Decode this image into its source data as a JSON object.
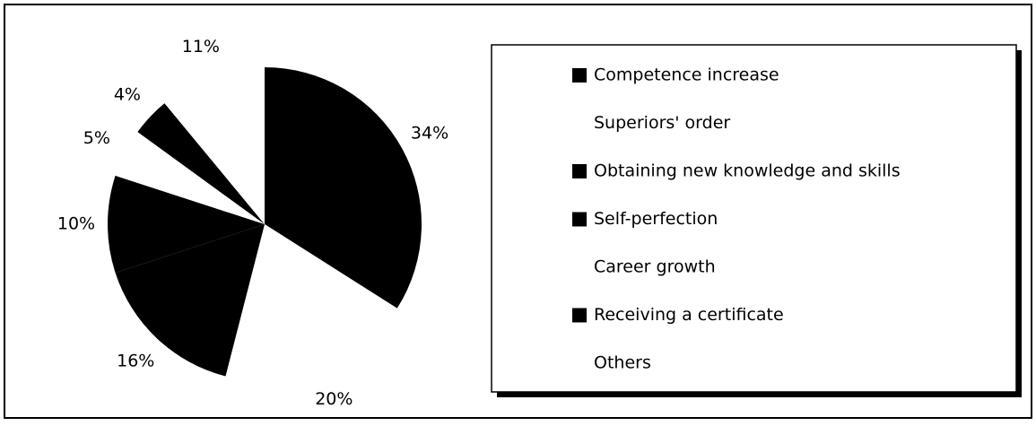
{
  "chart_data": {
    "type": "pie",
    "categories": [
      "Competence increase",
      "Superiors' order",
      "Obtaining new knowledge and skills",
      "Self-perfection",
      "Career growth",
      "Receiving a certificate",
      "Others"
    ],
    "values": [
      34,
      20,
      16,
      10,
      5,
      4,
      11
    ],
    "value_labels": [
      "34%",
      "20%",
      "16%",
      "10%",
      "5%",
      "4%",
      "11%"
    ],
    "colors": [
      "#000000",
      "#ffffff",
      "#000000",
      "#000000",
      "#ffffff",
      "#000000",
      "#ffffff"
    ],
    "legend": "right"
  }
}
